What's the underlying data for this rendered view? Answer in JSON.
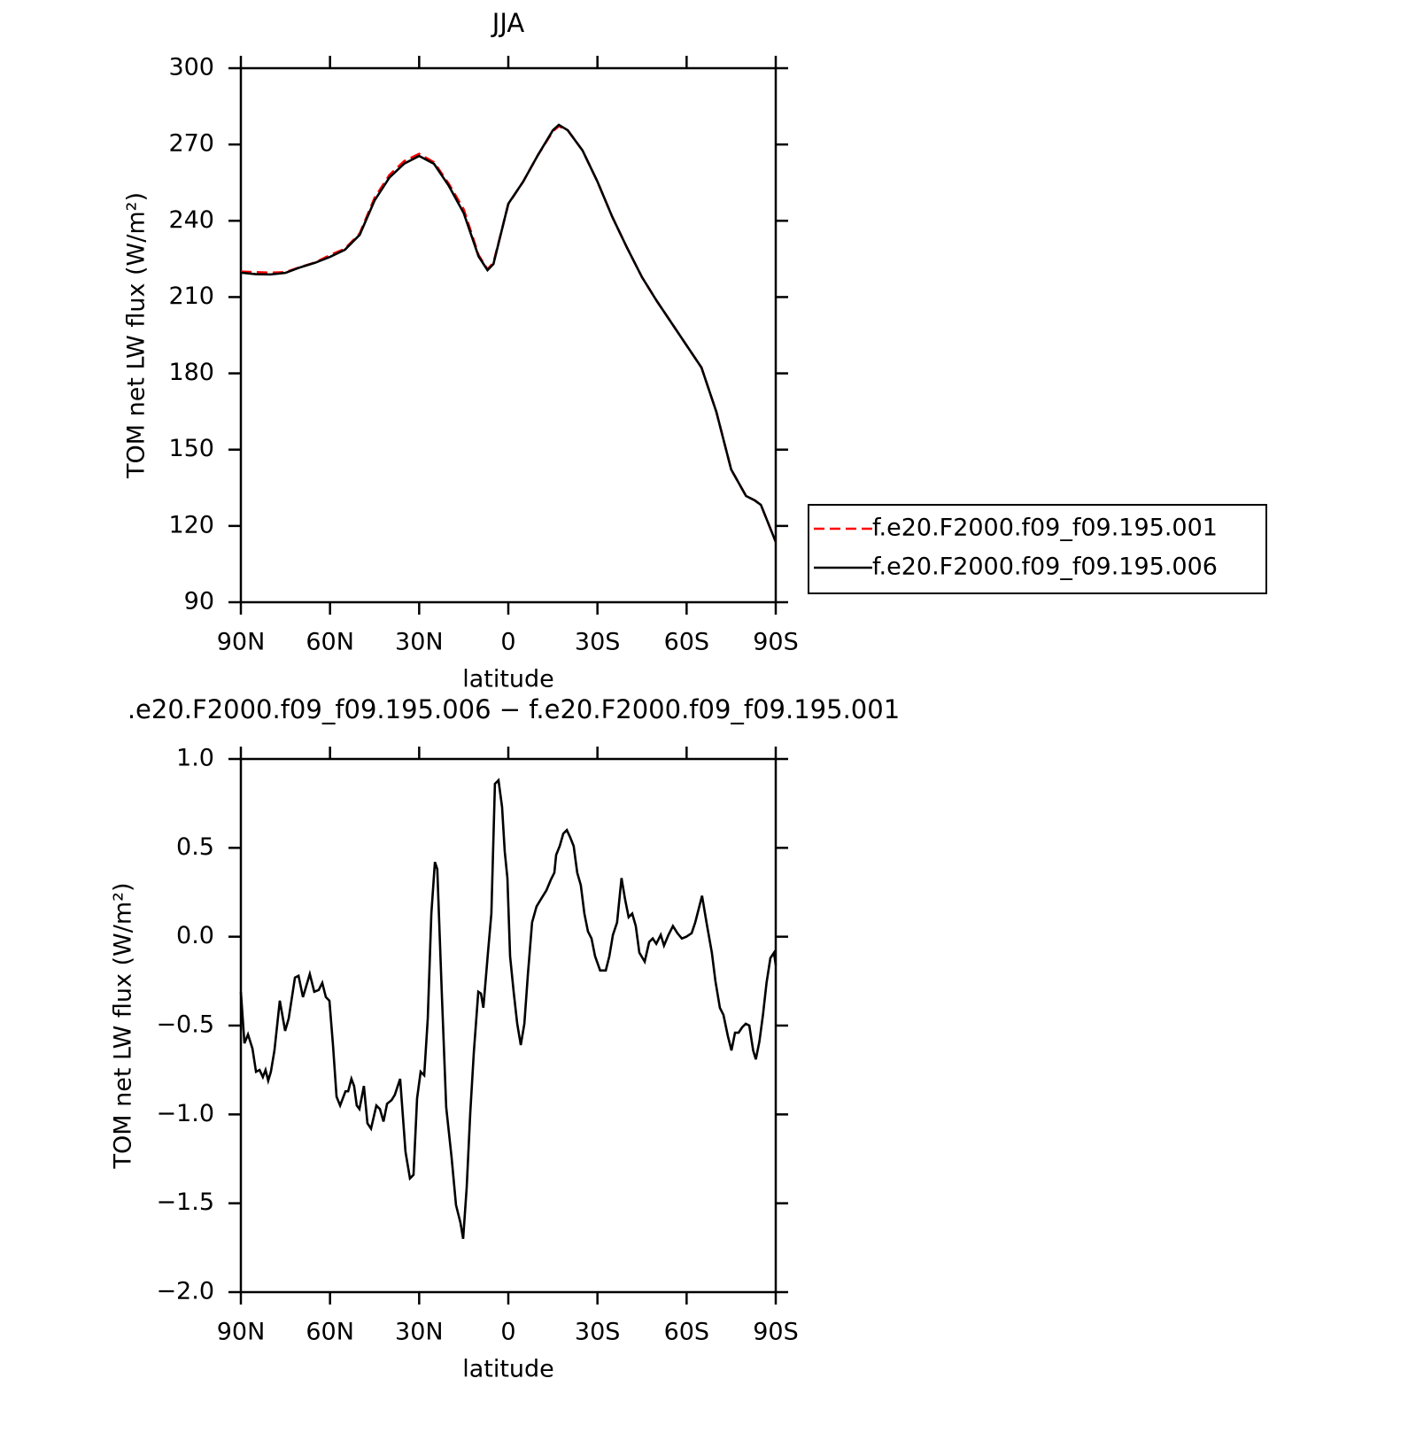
{
  "chart_data": [
    {
      "type": "line",
      "title": "JJA",
      "xlabel": "latitude",
      "ylabel": "TOM net LW flux (W/m²)",
      "xlim": [
        90,
        -90
      ],
      "xticks": [
        {
          "value": 90,
          "label": "90N"
        },
        {
          "value": 60,
          "label": "60N"
        },
        {
          "value": 30,
          "label": "30N"
        },
        0,
        {
          "value": -30,
          "label": "30S"
        },
        {
          "value": -60,
          "label": "60S"
        },
        {
          "value": -90,
          "label": "90S"
        }
      ],
      "ylim": [
        90,
        300
      ],
      "yticks": [
        90,
        120,
        150,
        180,
        210,
        240,
        270,
        300
      ],
      "legend": "right",
      "x": [
        90,
        85,
        80,
        75,
        70,
        65,
        60,
        55,
        50,
        45,
        40,
        35,
        30,
        25,
        20,
        15,
        10,
        7,
        5,
        0,
        -5,
        -10,
        -15,
        -17,
        -20,
        -25,
        -30,
        -35,
        -40,
        -45,
        -50,
        -55,
        -60,
        -65,
        -70,
        -75,
        -80,
        -83,
        -85,
        -90
      ],
      "series": [
        {
          "name": "f.e20.F2000.f09_f09.195.001",
          "color": "#ff0000",
          "style": "dashed",
          "values": [
            220,
            219.8,
            219.6,
            219.8,
            221.8,
            223.6,
            226.5,
            229,
            235,
            249,
            258,
            263.5,
            266.3,
            263,
            254.5,
            244.5,
            226.5,
            220.9,
            223.5,
            246.5,
            255.4,
            265.9,
            275.2,
            277.2,
            275.6,
            267.6,
            255.4,
            241.5,
            229.3,
            217.8,
            208.4,
            199.7,
            191,
            182.3,
            164.9,
            142.2,
            131.8,
            130,
            128.3,
            113.7
          ]
        },
        {
          "name": "f.e20.F2000.f09_f09.195.006",
          "color": "#000000",
          "style": "solid",
          "values": [
            219.6,
            219,
            218.9,
            219.5,
            221.7,
            223.5,
            225.8,
            228.6,
            234.5,
            248,
            257,
            262.5,
            265.5,
            262.4,
            253.7,
            243,
            226,
            220.6,
            223,
            246.7,
            255.4,
            265.9,
            275.6,
            277.7,
            275.6,
            267.6,
            255.4,
            241.5,
            229.3,
            217.8,
            208.4,
            199.7,
            191,
            182.3,
            164.9,
            142.2,
            131.8,
            130,
            128.3,
            113.7
          ]
        }
      ]
    },
    {
      "type": "line",
      "title": ".e20.F2000.f09_f09.195.006 − f.e20.F2000.f09_f09.195.001",
      "xlabel": "latitude",
      "ylabel": "TOM net LW flux (W/m²)",
      "xlim": [
        90,
        -90
      ],
      "xticks": [
        {
          "value": 90,
          "label": "90N"
        },
        {
          "value": 60,
          "label": "60N"
        },
        {
          "value": 30,
          "label": "30N"
        },
        0,
        {
          "value": -30,
          "label": "30S"
        },
        {
          "value": -60,
          "label": "60S"
        },
        {
          "value": -90,
          "label": "90S"
        }
      ],
      "ylim": [
        -2,
        1
      ],
      "yticks": [
        {
          "value": -2,
          "label": "−2.0"
        },
        {
          "value": -1.5,
          "label": "−1.5"
        },
        {
          "value": -1,
          "label": "−1.0"
        },
        {
          "value": -0.5,
          "label": "−0.5"
        },
        {
          "value": 0,
          "label": "0.0"
        },
        0.5,
        {
          "value": 1,
          "label": "1.0"
        }
      ],
      "x": [
        90,
        88.8,
        87.6,
        86.1,
        84.9,
        83.7,
        82.6,
        81.7,
        80.8,
        79.9,
        78.7,
        76.9,
        75.1,
        73.9,
        71.8,
        70.6,
        69.1,
        66.8,
        65.3,
        63.8,
        62.6,
        61.4,
        60.2,
        59.0,
        57.8,
        56.6,
        54.8,
        53.9,
        52.8,
        51.9,
        51.0,
        50.1,
        48.6,
        47.4,
        46.2,
        44.4,
        43.2,
        42.0,
        40.8,
        39.3,
        38.2,
        36.4,
        34.6,
        33.1,
        31.9,
        30.7,
        29.5,
        28.3,
        27.1,
        25.9,
        24.7,
        23.9,
        22.4,
        20.9,
        19.1,
        17.6,
        16.1,
        15.2,
        14.0,
        12.8,
        11.6,
        10.1,
        9.2,
        8.4,
        6.9,
        5.7,
        4.5,
        3.3,
        2.1,
        1.2,
        0.3,
        -0.6,
        -1.8,
        -3.0,
        -4.2,
        -5.4,
        -6.6,
        -8.0,
        -9.5,
        -11.3,
        -12.8,
        -14.3,
        -15.5,
        -16.1,
        -17.3,
        -18.5,
        -19.7,
        -20.8,
        -22.0,
        -23.2,
        -24.4,
        -25.6,
        -26.8,
        -28.0,
        -29.2,
        -30.9,
        -32.8,
        -34.0,
        -35.2,
        -36.6,
        -38.1,
        -39.3,
        -40.5,
        -41.7,
        -42.9,
        -44.1,
        -45.9,
        -47.4,
        -48.6,
        -49.8,
        -51.3,
        -52.4,
        -53.9,
        -55.4,
        -56.9,
        -58.4,
        -59.9,
        -61.7,
        -62.9,
        -65.2,
        -66.7,
        -68.5,
        -69.7,
        -71.2,
        -72.4,
        -73.9,
        -75.1,
        -76.3,
        -77.5,
        -78.7,
        -79.9,
        -81.1,
        -82.4,
        -83.3,
        -84.5,
        -85.7,
        -86.9,
        -88.2,
        -89.4,
        -90
      ],
      "series": [
        {
          "color": "#000000",
          "style": "solid",
          "values": [
            -0.31,
            -0.6,
            -0.55,
            -0.63,
            -0.76,
            -0.75,
            -0.79,
            -0.75,
            -0.81,
            -0.76,
            -0.64,
            -0.36,
            -0.53,
            -0.46,
            -0.23,
            -0.22,
            -0.34,
            -0.21,
            -0.31,
            -0.3,
            -0.26,
            -0.34,
            -0.36,
            -0.61,
            -0.9,
            -0.95,
            -0.87,
            -0.87,
            -0.8,
            -0.84,
            -0.95,
            -0.97,
            -0.84,
            -1.05,
            -1.08,
            -0.95,
            -0.97,
            -1.04,
            -0.94,
            -0.92,
            -0.89,
            -0.8,
            -1.21,
            -1.36,
            -1.34,
            -0.91,
            -0.76,
            -0.78,
            -0.46,
            0.13,
            0.42,
            0.38,
            -0.31,
            -0.96,
            -1.24,
            -1.51,
            -1.61,
            -1.7,
            -1.41,
            -0.99,
            -0.65,
            -0.31,
            -0.32,
            -0.4,
            -0.1,
            0.13,
            0.86,
            0.88,
            0.73,
            0.48,
            0.33,
            -0.11,
            -0.31,
            -0.49,
            -0.61,
            -0.49,
            -0.21,
            0.08,
            0.17,
            0.22,
            0.26,
            0.32,
            0.36,
            0.46,
            0.51,
            0.58,
            0.6,
            0.56,
            0.51,
            0.36,
            0.29,
            0.13,
            0.03,
            -0.01,
            -0.11,
            -0.19,
            -0.19,
            -0.11,
            0.01,
            0.08,
            0.33,
            0.21,
            0.11,
            0.13,
            0.06,
            -0.09,
            -0.14,
            -0.03,
            -0.01,
            -0.04,
            0.01,
            -0.05,
            0.01,
            0.06,
            0.02,
            -0.01,
            0,
            0.02,
            0.08,
            0.23,
            0.08,
            -0.09,
            -0.25,
            -0.4,
            -0.44,
            -0.56,
            -0.64,
            -0.54,
            -0.54,
            -0.51,
            -0.49,
            -0.5,
            -0.64,
            -0.69,
            -0.59,
            -0.44,
            -0.26,
            -0.12,
            -0.09,
            -0.16
          ]
        }
      ]
    }
  ]
}
